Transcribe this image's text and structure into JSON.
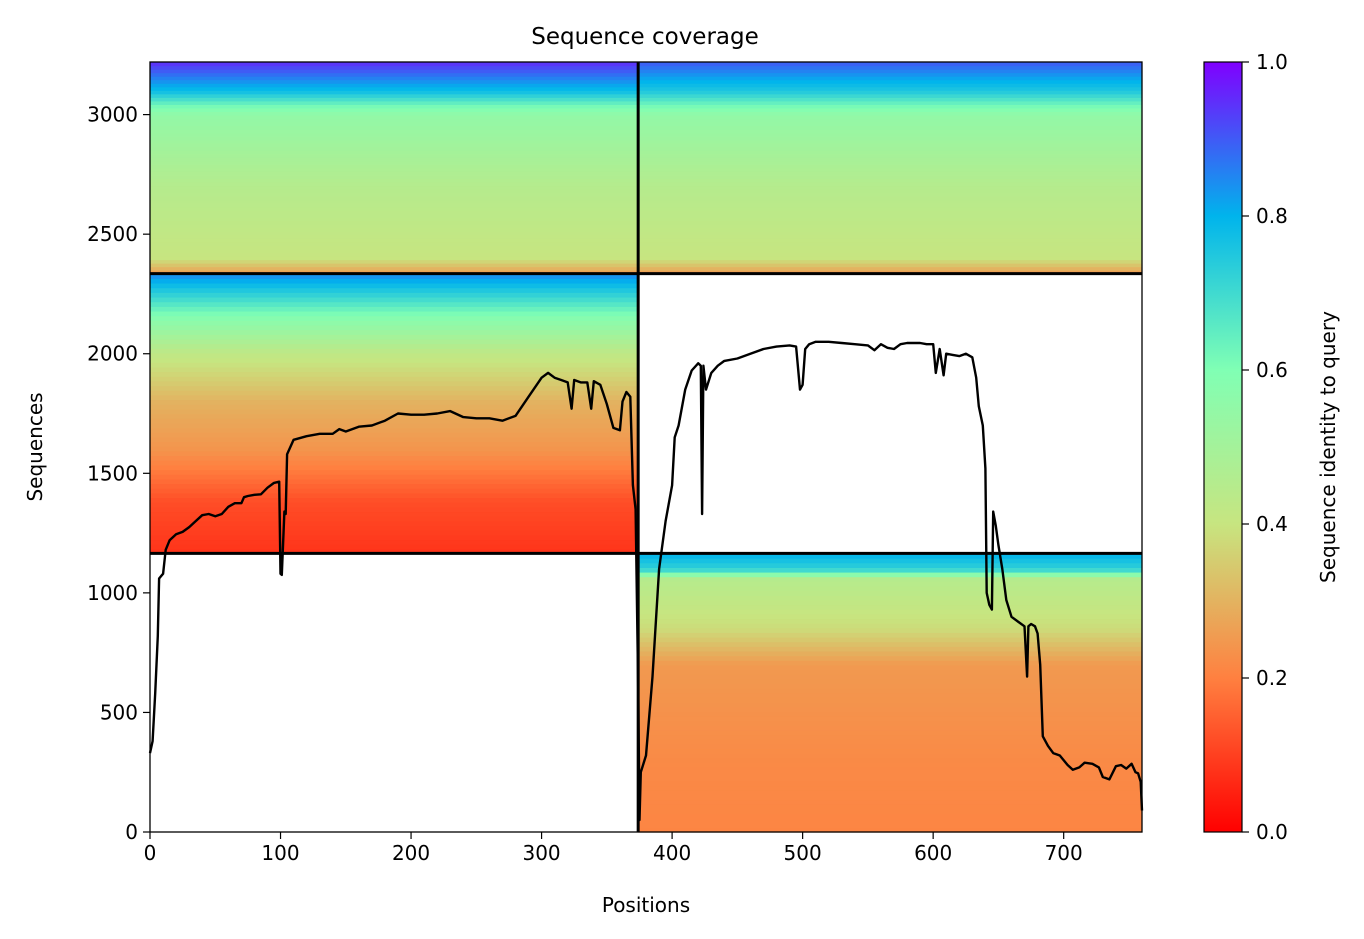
{
  "chart_data": {
    "type": "heatmap",
    "title": "Sequence coverage",
    "xlabel": "Positions",
    "ylabel": "Sequences",
    "xlim": [
      0,
      760
    ],
    "ylim": [
      0,
      3220
    ],
    "x_ticks": [
      0,
      100,
      200,
      300,
      400,
      500,
      600,
      700
    ],
    "y_ticks": [
      0,
      500,
      1000,
      1500,
      2000,
      2500,
      3000
    ],
    "grid": false,
    "colorbar": {
      "label": "Sequence identity to query",
      "range": [
        0,
        1
      ],
      "ticks": [
        "0.0",
        "0.2",
        "0.4",
        "0.6",
        "0.8",
        "1.0"
      ],
      "colormap": "rainbow_r",
      "stops": [
        "#ff0000",
        "#ff8040",
        "#c7e580",
        "#80ffb4",
        "#00b4ec",
        "#8000ff"
      ]
    },
    "chain_boundaries": {
      "position_breaks": [
        374
      ],
      "sequence_breaks": [
        1165,
        2335
      ]
    },
    "blocks": [
      {
        "name": "bottom-right",
        "x": [
          374,
          760
        ],
        "y": [
          0,
          1165
        ],
        "identity_profile": [
          [
            0,
            0.21
          ],
          [
            300,
            0.22
          ],
          [
            700,
            0.25
          ],
          [
            850,
            0.38
          ],
          [
            1060,
            0.45
          ],
          [
            1100,
            0.72
          ],
          [
            1165,
            0.8
          ]
        ]
      },
      {
        "name": "middle-left",
        "x": [
          0,
          374
        ],
        "y": [
          1165,
          2335
        ],
        "identity_profile": [
          [
            1165,
            0.08
          ],
          [
            1380,
            0.12
          ],
          [
            1600,
            0.24
          ],
          [
            1800,
            0.3
          ],
          [
            2000,
            0.42
          ],
          [
            2150,
            0.58
          ],
          [
            2335,
            0.85
          ]
        ]
      },
      {
        "name": "top-left",
        "x": [
          0,
          374
        ],
        "y": [
          2335,
          3220
        ],
        "identity_profile": [
          [
            2335,
            0.25
          ],
          [
            2400,
            0.4
          ],
          [
            2700,
            0.45
          ],
          [
            3000,
            0.55
          ],
          [
            3040,
            0.62
          ],
          [
            3100,
            0.78
          ],
          [
            3220,
            0.95
          ]
        ]
      },
      {
        "name": "top-right",
        "x": [
          374,
          760
        ],
        "y": [
          2335,
          3220
        ],
        "identity_profile": [
          [
            2335,
            0.25
          ],
          [
            2400,
            0.4
          ],
          [
            2700,
            0.45
          ],
          [
            3000,
            0.55
          ],
          [
            3040,
            0.62
          ],
          [
            3100,
            0.75
          ],
          [
            3220,
            0.9
          ]
        ]
      }
    ],
    "series": [
      {
        "values": [
          [
            0,
            330
          ],
          [
            2,
            380
          ],
          [
            4,
            580
          ],
          [
            6,
            820
          ],
          [
            7,
            1060
          ],
          [
            10,
            1080
          ],
          [
            12,
            1180
          ],
          [
            15,
            1220
          ],
          [
            20,
            1245
          ],
          [
            25,
            1255
          ],
          [
            30,
            1275
          ],
          [
            35,
            1300
          ],
          [
            40,
            1325
          ],
          [
            45,
            1330
          ],
          [
            50,
            1320
          ],
          [
            55,
            1330
          ],
          [
            60,
            1360
          ],
          [
            65,
            1375
          ],
          [
            70,
            1375
          ],
          [
            72,
            1400
          ],
          [
            75,
            1405
          ],
          [
            80,
            1410
          ],
          [
            85,
            1412
          ],
          [
            90,
            1440
          ],
          [
            95,
            1460
          ],
          [
            99,
            1465
          ],
          [
            100,
            1080
          ],
          [
            101,
            1075
          ],
          [
            103,
            1340
          ],
          [
            104,
            1330
          ],
          [
            105,
            1580
          ],
          [
            110,
            1640
          ],
          [
            120,
            1655
          ],
          [
            130,
            1665
          ],
          [
            140,
            1665
          ],
          [
            145,
            1685
          ],
          [
            150,
            1675
          ],
          [
            160,
            1695
          ],
          [
            170,
            1700
          ],
          [
            180,
            1720
          ],
          [
            190,
            1750
          ],
          [
            200,
            1745
          ],
          [
            210,
            1745
          ],
          [
            220,
            1750
          ],
          [
            230,
            1760
          ],
          [
            240,
            1735
          ],
          [
            250,
            1730
          ],
          [
            260,
            1730
          ],
          [
            270,
            1720
          ],
          [
            280,
            1740
          ],
          [
            290,
            1820
          ],
          [
            300,
            1900
          ],
          [
            305,
            1920
          ],
          [
            310,
            1900
          ],
          [
            315,
            1890
          ],
          [
            320,
            1880
          ],
          [
            323,
            1770
          ],
          [
            325,
            1890
          ],
          [
            330,
            1880
          ],
          [
            335,
            1880
          ],
          [
            338,
            1770
          ],
          [
            340,
            1885
          ],
          [
            345,
            1870
          ],
          [
            350,
            1790
          ],
          [
            355,
            1690
          ],
          [
            360,
            1680
          ],
          [
            362,
            1800
          ],
          [
            365,
            1840
          ],
          [
            368,
            1820
          ],
          [
            370,
            1450
          ],
          [
            372,
            1350
          ],
          [
            374,
            600
          ],
          [
            375,
            50
          ],
          [
            376,
            250
          ],
          [
            380,
            320
          ],
          [
            385,
            650
          ],
          [
            390,
            1100
          ],
          [
            395,
            1300
          ],
          [
            400,
            1450
          ],
          [
            402,
            1650
          ],
          [
            405,
            1700
          ],
          [
            410,
            1850
          ],
          [
            415,
            1930
          ],
          [
            420,
            1960
          ],
          [
            422,
            1950
          ],
          [
            423,
            1330
          ],
          [
            424,
            1950
          ],
          [
            426,
            1850
          ],
          [
            430,
            1920
          ],
          [
            435,
            1950
          ],
          [
            440,
            1970
          ],
          [
            450,
            1980
          ],
          [
            460,
            2000
          ],
          [
            470,
            2020
          ],
          [
            480,
            2030
          ],
          [
            490,
            2035
          ],
          [
            495,
            2030
          ],
          [
            498,
            1850
          ],
          [
            500,
            1870
          ],
          [
            502,
            2020
          ],
          [
            505,
            2040
          ],
          [
            510,
            2050
          ],
          [
            520,
            2050
          ],
          [
            530,
            2045
          ],
          [
            540,
            2040
          ],
          [
            550,
            2035
          ],
          [
            555,
            2015
          ],
          [
            560,
            2040
          ],
          [
            565,
            2025
          ],
          [
            570,
            2020
          ],
          [
            575,
            2040
          ],
          [
            580,
            2045
          ],
          [
            590,
            2045
          ],
          [
            595,
            2040
          ],
          [
            600,
            2040
          ],
          [
            602,
            1920
          ],
          [
            605,
            2020
          ],
          [
            608,
            1910
          ],
          [
            610,
            2000
          ],
          [
            615,
            1995
          ],
          [
            620,
            1990
          ],
          [
            625,
            2000
          ],
          [
            630,
            1985
          ],
          [
            633,
            1900
          ],
          [
            635,
            1780
          ],
          [
            638,
            1700
          ],
          [
            640,
            1520
          ],
          [
            641,
            1000
          ],
          [
            643,
            950
          ],
          [
            645,
            930
          ],
          [
            646,
            1340
          ],
          [
            648,
            1280
          ],
          [
            650,
            1200
          ],
          [
            653,
            1100
          ],
          [
            656,
            970
          ],
          [
            660,
            900
          ],
          [
            665,
            880
          ],
          [
            670,
            860
          ],
          [
            672,
            650
          ],
          [
            673,
            860
          ],
          [
            675,
            870
          ],
          [
            678,
            860
          ],
          [
            680,
            830
          ],
          [
            682,
            700
          ],
          [
            684,
            400
          ],
          [
            688,
            360
          ],
          [
            692,
            330
          ],
          [
            697,
            320
          ],
          [
            700,
            300
          ],
          [
            703,
            280
          ],
          [
            707,
            260
          ],
          [
            712,
            270
          ],
          [
            716,
            290
          ],
          [
            722,
            285
          ],
          [
            727,
            270
          ],
          [
            730,
            230
          ],
          [
            735,
            220
          ],
          [
            740,
            275
          ],
          [
            744,
            280
          ],
          [
            748,
            265
          ],
          [
            752,
            285
          ],
          [
            755,
            250
          ],
          [
            757,
            245
          ],
          [
            759,
            210
          ],
          [
            760,
            90
          ]
        ]
      }
    ]
  }
}
